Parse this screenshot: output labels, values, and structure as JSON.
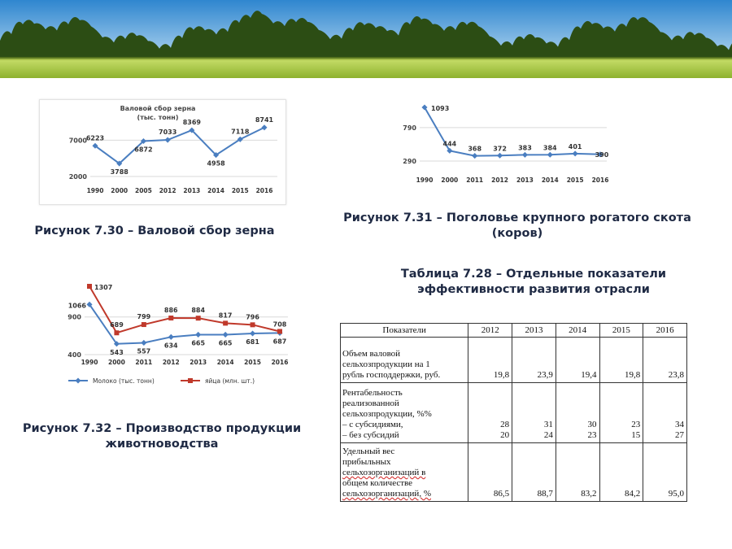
{
  "colors": {
    "sky_top": "#2f86cf",
    "sky_bottom": "#d6ecf9",
    "forest": "#2c4d14",
    "field_top": "#bcd85a",
    "field_bottom": "#8db12e",
    "caption_text": "#1f2a44",
    "line_blue": "#4a7ec0",
    "line_red": "#c0392b",
    "grid": "#d9d9d9"
  },
  "banner": {
    "icon": "forest-field-banner"
  },
  "fig_30": {
    "caption": "Рисунок 7.30 – Валовой сбор зерна",
    "chart_data": {
      "type": "line",
      "title": "Валовой сбор зерна",
      "subtitle": "(тыс. тонн)",
      "categories": [
        "1990",
        "2000",
        "2005",
        "2012",
        "2013",
        "2014",
        "2015",
        "2016"
      ],
      "series": [
        {
          "values": [
            6223,
            3788,
            6872,
            7033,
            8369,
            4958,
            7118,
            8741
          ]
        }
      ],
      "ylim": [
        2000,
        9500
      ],
      "yticks": [
        "7000",
        "2000"
      ],
      "ytick_values": [
        7000,
        2000
      ],
      "grid": true
    }
  },
  "fig_31": {
    "caption_line1": "Рисунок 7.31 – Поголовье крупного рогатого скота",
    "caption_line2": "(коров)",
    "chart_data": {
      "type": "line",
      "categories": [
        "1990",
        "2000",
        "2011",
        "2012",
        "2013",
        "2014",
        "2015",
        "2016"
      ],
      "series": [
        {
          "values": [
            1093,
            444,
            368,
            372,
            383,
            384,
            401,
            390
          ]
        }
      ],
      "ylim": [
        290,
        1093
      ],
      "yticks": [
        "790",
        "290"
      ],
      "ytick_values": [
        790,
        290
      ],
      "grid": true
    }
  },
  "fig_32": {
    "caption_line1": "Рисунок 7.32 – Производство продукции",
    "caption_line2": "животноводства",
    "chart_data": {
      "type": "line",
      "categories": [
        "1990",
        "2000",
        "2011",
        "2012",
        "2013",
        "2014",
        "2015",
        "2016"
      ],
      "series": [
        {
          "name": "Молоко (тыс. тонн)",
          "color": "#4a7ec0",
          "values": [
            1066,
            543,
            557,
            634,
            665,
            665,
            681,
            687
          ]
        },
        {
          "name": "яйца (млн. шт.)",
          "color": "#c0392b",
          "values": [
            1307,
            689,
            799,
            886,
            884,
            817,
            796,
            708
          ]
        }
      ],
      "ylim": [
        400,
        1307
      ],
      "yticks": [
        "900",
        "400"
      ],
      "ytick_values": [
        900,
        400
      ],
      "legend": "bottom",
      "grid": true
    }
  },
  "table_7_28": {
    "title_line1": "Таблица 7.28 – Отдельные показатели",
    "title_line2": "эффективности развития отрасли",
    "header": [
      "Показатели",
      "2012",
      "2013",
      "2014",
      "2015",
      "2016"
    ],
    "row1": {
      "label_lines": [
        "Объем валовой",
        "сельхозпродукции на 1",
        "рубль господдержки, руб."
      ],
      "values": [
        "19,8",
        "23,9",
        "19,4",
        "19,8",
        "23,8"
      ]
    },
    "row2": {
      "label_lines": [
        "Рентабельность",
        "реализованной",
        "сельхозпродукции, %%",
        "– с субсидиями,",
        "– без субсидий"
      ],
      "with_subsidies": [
        "28",
        "31",
        "30",
        "23",
        "34"
      ],
      "without_subsidies": [
        "20",
        "24",
        "23",
        "15",
        "27"
      ]
    },
    "row3": {
      "label_lines": [
        "Удельный вес",
        "прибыльных",
        "сельхозорганизаций в",
        "общем количестве",
        "сельхозорганизаций, %"
      ],
      "values": [
        "86,5",
        "88,7",
        "83,2",
        "84,2",
        "95,0"
      ]
    }
  }
}
